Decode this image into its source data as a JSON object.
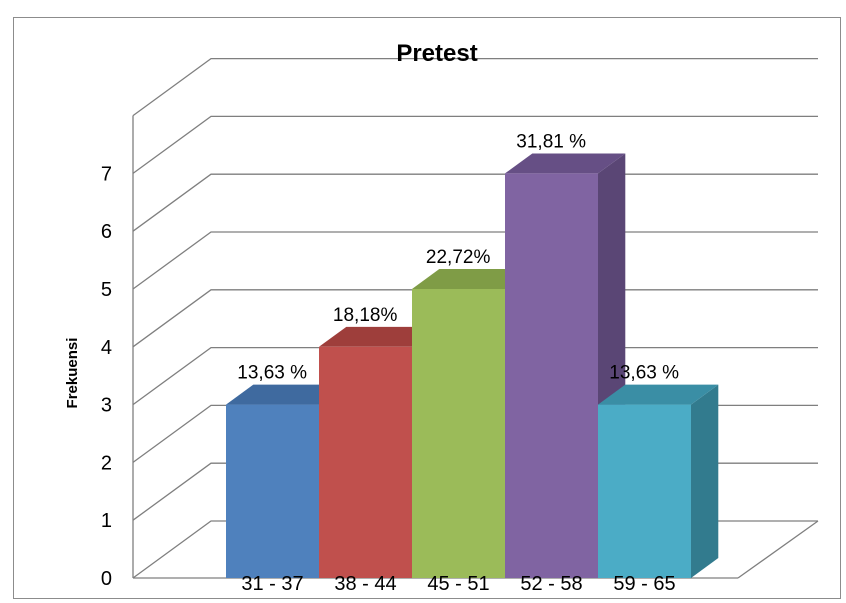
{
  "chart_data": {
    "type": "bar",
    "title": "Pretest",
    "xlabel": "",
    "ylabel": "Frekuensi",
    "ylim": [
      0,
      7
    ],
    "y_ticks": [
      "0",
      "1",
      "2",
      "3",
      "4",
      "5",
      "6",
      "7"
    ],
    "grid": true,
    "legend": "none",
    "categories": [
      "31 - 37",
      "38 - 44",
      "45 - 51",
      "52 - 58",
      "59 - 65"
    ],
    "values": [
      3,
      4,
      5,
      7,
      3
    ],
    "data_labels": [
      "13,63 %",
      "18,18%",
      "22,72%",
      "31,81 %",
      "13,63 %"
    ],
    "colors": [
      {
        "front": "#4f81bd",
        "top": "#3f6a9f",
        "side": "#385d8a"
      },
      {
        "front": "#c0504d",
        "top": "#9e3e3b",
        "side": "#8c3836"
      },
      {
        "front": "#9bbb59",
        "top": "#7f9c46",
        "side": "#71893f"
      },
      {
        "front": "#8064a2",
        "top": "#664f85",
        "side": "#5a4675"
      },
      {
        "front": "#4bacc6",
        "top": "#3a8ea5",
        "side": "#327b8e"
      }
    ]
  }
}
